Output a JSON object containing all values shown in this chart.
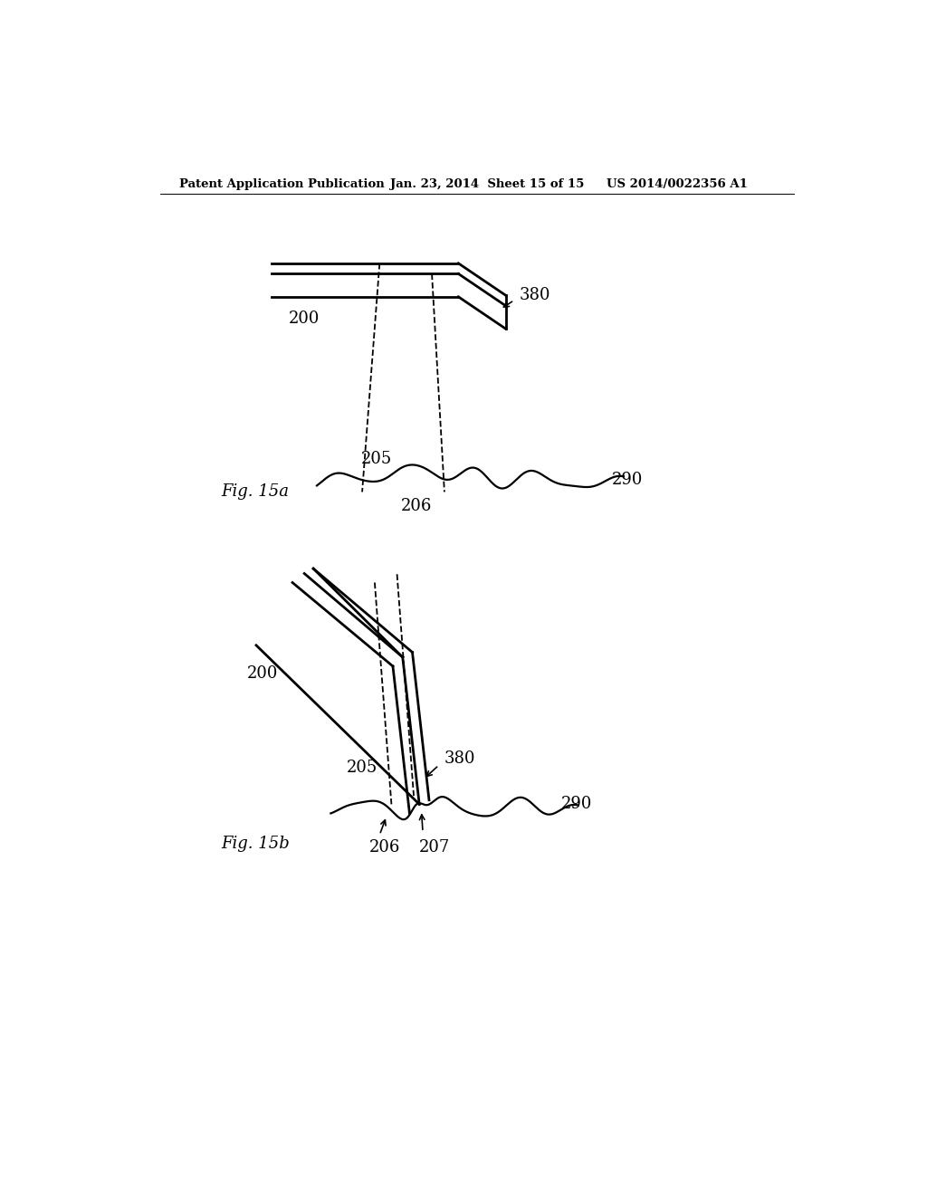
{
  "background_color": "#ffffff",
  "header_left": "Patent Application Publication",
  "header_center": "Jan. 23, 2014  Sheet 15 of 15",
  "header_right": "US 2014/0022356 A1",
  "fig15a_label": "Fig. 15a",
  "fig15b_label": "Fig. 15b",
  "label_200a": "200",
  "label_205a": "205",
  "label_206a": "206",
  "label_290a": "290",
  "label_380a": "380",
  "label_200b": "200",
  "label_205b": "205",
  "label_206b": "206",
  "label_207b": "207",
  "label_290b": "290",
  "label_380b": "380"
}
